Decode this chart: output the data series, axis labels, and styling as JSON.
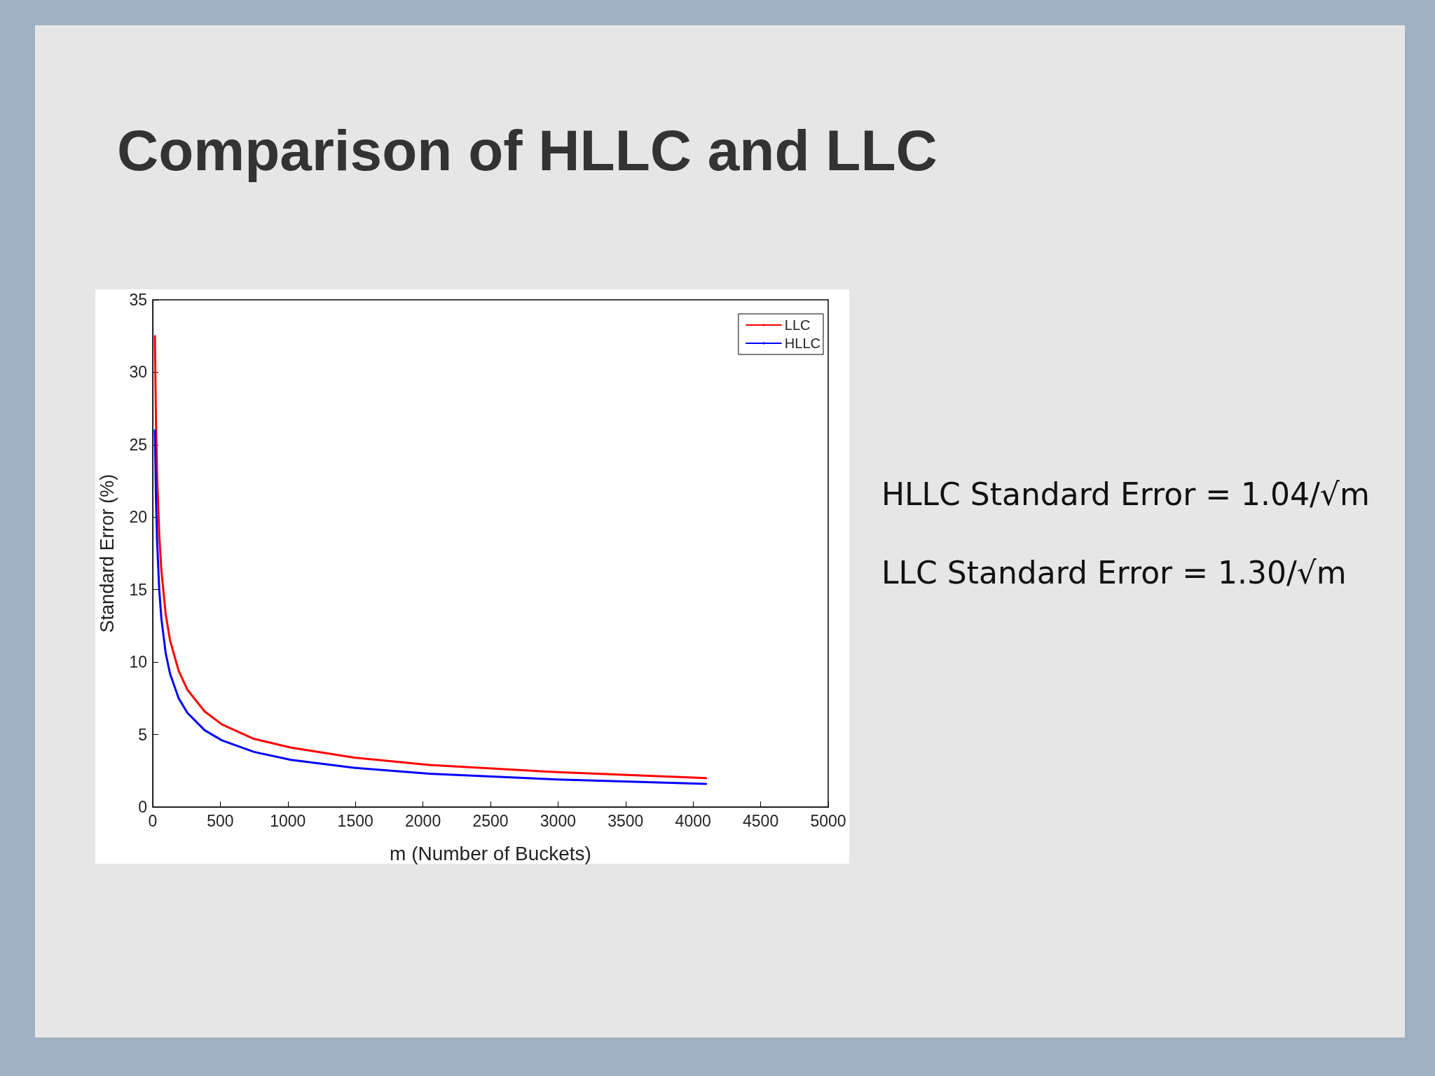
{
  "chart_data": {
    "type": "line",
    "title": "Comparison of HLLC and LLC",
    "xlabel": "m (Number of Buckets)",
    "ylabel": "Standard Error (%)",
    "x": [
      16,
      24,
      32,
      48,
      64,
      96,
      128,
      192,
      256,
      384,
      512,
      750,
      1024,
      1500,
      2048,
      3000,
      4096
    ],
    "series": [
      {
        "name": "LLC",
        "color": "#ff0000",
        "values": [
          32.5,
          26.5,
          23,
          18.8,
          16.3,
          13.3,
          11.5,
          9.4,
          8.1,
          6.6,
          5.7,
          4.7,
          4.1,
          3.4,
          2.9,
          2.4,
          2.0
        ]
      },
      {
        "name": "HLLC",
        "color": "#0000ff",
        "values": [
          26,
          21.2,
          18.4,
          15,
          13,
          10.6,
          9.2,
          7.5,
          6.5,
          5.3,
          4.6,
          3.8,
          3.25,
          2.7,
          2.3,
          1.9,
          1.6
        ]
      }
    ],
    "xlim": [
      0,
      5000
    ],
    "xticks": [
      0,
      500,
      1000,
      1500,
      2000,
      2500,
      3000,
      3500,
      4000,
      4500,
      5000
    ],
    "ylim": [
      0,
      35
    ],
    "yticks": [
      0,
      5,
      10,
      15,
      20,
      25,
      30,
      35
    ],
    "grid": false,
    "legend": "top right",
    "marker": "none",
    "line_style": "solid",
    "annotations": [
      "HLLC Standard Error = 1.04/√m",
      "LLC Standard Error = 1.30/√m"
    ]
  }
}
